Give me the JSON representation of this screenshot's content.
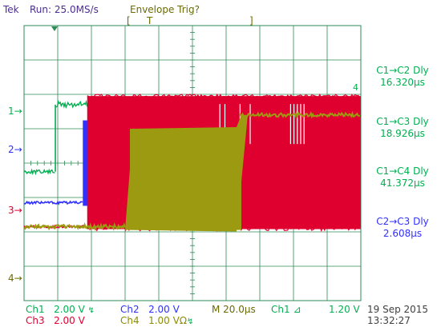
{
  "header": {
    "brand": "Tek",
    "run_status": "Run: 25.0MS/s",
    "trigger_status": "Envelope Trig?",
    "record_bracket_left": "[",
    "record_trigger_marker": "T",
    "record_bracket_right": "]"
  },
  "channel_markers": [
    {
      "label": "1",
      "color": "#00b050"
    },
    {
      "label": "2",
      "color": "#3030ff"
    },
    {
      "label": "3",
      "color": "#e00030"
    },
    {
      "label": "4",
      "color": "#8c8c00"
    }
  ],
  "trace_tag": {
    "label": "4"
  },
  "measurements": [
    {
      "title": "C1→C2 Dly",
      "value": "16.320µs",
      "color": "#00b050"
    },
    {
      "title": "C1→C3 Dly",
      "value": "18.926µs",
      "color": "#00b050"
    },
    {
      "title": "C1→C4 Dly",
      "value": "41.372µs",
      "color": "#00b050"
    },
    {
      "title": "C2→C3 Dly",
      "value": "2.608µs",
      "color": "#3030ff"
    }
  ],
  "readouts": {
    "ch1": {
      "name": "Ch1",
      "scale": "2.00 V",
      "coupling_icon": "bandwidth-limit-icon"
    },
    "ch2": {
      "name": "Ch2",
      "scale": "2.00 V"
    },
    "ch3": {
      "name": "Ch3",
      "scale": "2.00 V"
    },
    "ch4": {
      "name": "Ch4",
      "scale": "1.00 VΩ",
      "coupling_icon": "bandwidth-limit-icon"
    },
    "timebase": "M 20.0µs",
    "trigger_source": "Ch1",
    "trigger_slope_icon": "rising-edge-icon",
    "trigger_level": "1.20 V",
    "date": "19 Sep 2015",
    "time": "13:32:27"
  },
  "colors": {
    "ch1": "#00b050",
    "ch2": "#3030ff",
    "ch3": "#e00030",
    "ch4": "#9c9a10",
    "brand": "#4b2d8f",
    "grid": "#2e8b57",
    "text_dark": "#404040"
  },
  "chart_data": {
    "type": "line",
    "x_unit": "µs",
    "xlim": [
      0,
      200
    ],
    "divisions": 10,
    "series": [
      {
        "name": "Ch1",
        "edges_us": [
          18.6
        ],
        "levels_div": [
          -0.25,
          1.7
        ],
        "display": "digital, rising edge"
      },
      {
        "name": "Ch2",
        "edges_us": [
          34.9
        ],
        "levels_div": [
          -1.15,
          1.15
        ],
        "display": "digital, rising edge with ringing burst to 47us"
      },
      {
        "name": "Ch3",
        "edges_us": [
          37.5
        ],
        "levels_div": [
          -1.85,
          1.95
        ],
        "display": "digital, rising edge followed by dense switching"
      },
      {
        "name": "Ch4",
        "edges_us": [
          60,
          130
        ],
        "levels_div": [
          -1.85,
          1.0,
          1.4
        ],
        "display": "slow ramp"
      }
    ]
  }
}
